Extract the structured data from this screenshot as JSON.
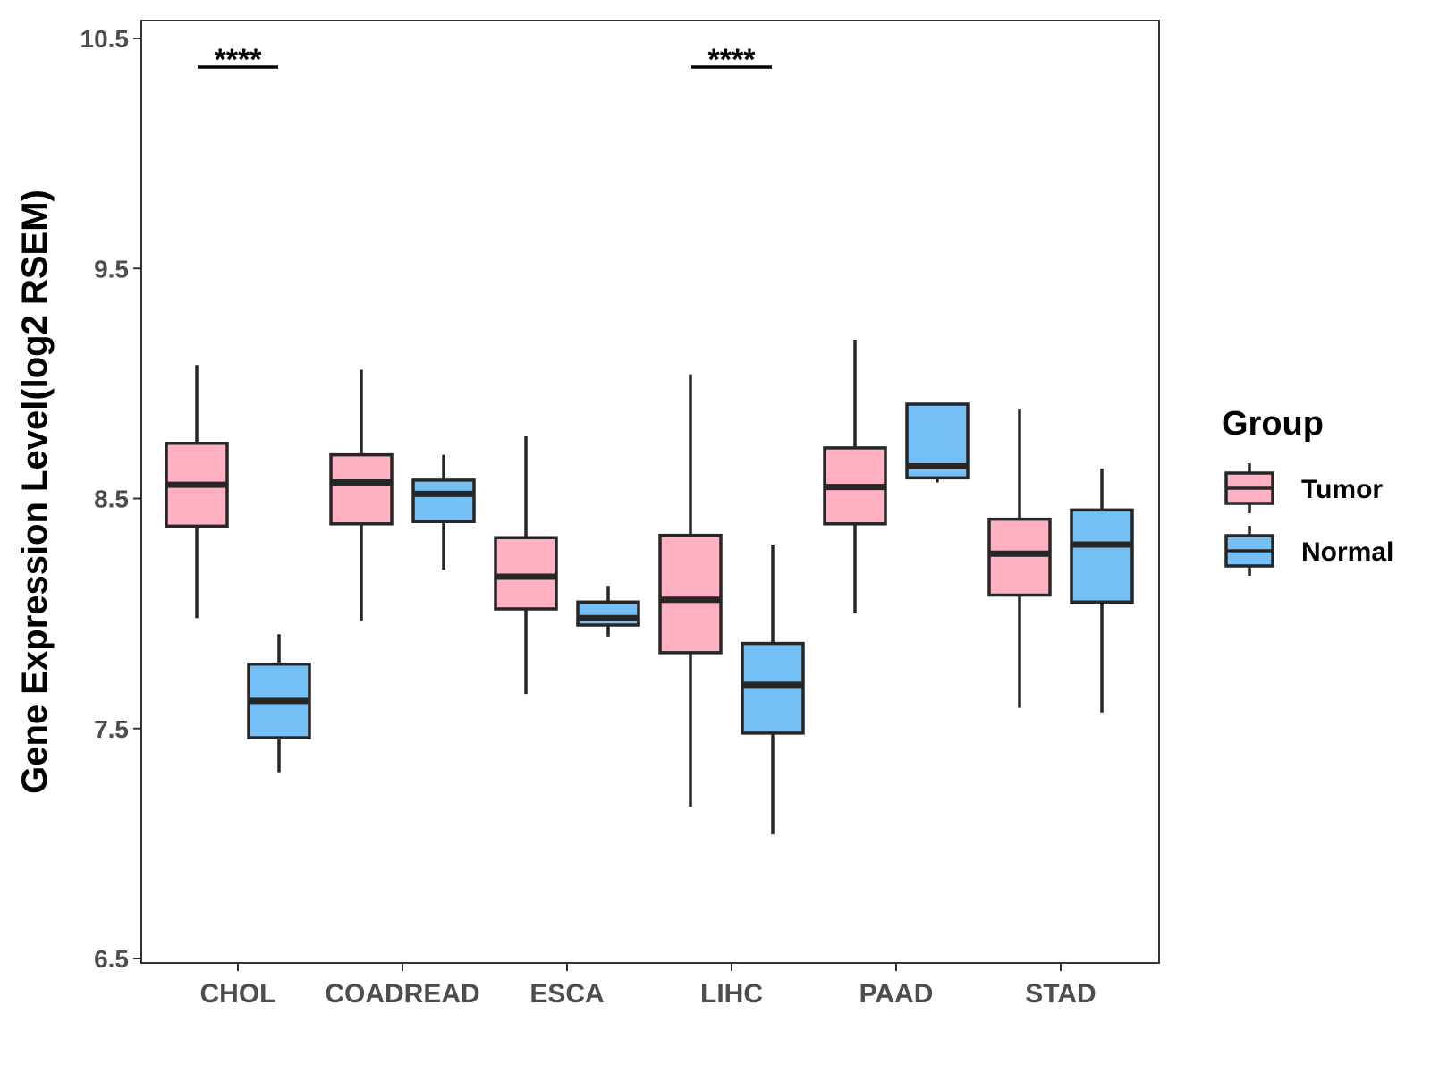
{
  "chart_data": {
    "type": "boxplot",
    "title": "",
    "xlabel": "",
    "ylabel": "Gene Expression Level(log2 RSEM)",
    "ylim": [
      6.5,
      10.5
    ],
    "yticks": [
      6.5,
      7.5,
      8.5,
      9.5,
      10.5
    ],
    "ytick_labels": [
      "6.5",
      "7.5",
      "8.5",
      "9.5",
      "10.5"
    ],
    "categories": [
      "CHOL",
      "COADREAD",
      "ESCA",
      "LIHC",
      "PAAD",
      "STAD"
    ],
    "legend": {
      "title": "Group",
      "position": "right",
      "entries": [
        {
          "name": "Tumor",
          "color": "#FFB0C1"
        },
        {
          "name": "Normal",
          "color": "#74BFF5"
        }
      ]
    },
    "series": [
      {
        "name": "Tumor",
        "color": "#FFB0C1",
        "boxes": [
          {
            "category": "CHOL",
            "min": 7.98,
            "q1": 8.38,
            "median": 8.56,
            "q3": 8.74,
            "max": 9.08
          },
          {
            "category": "COADREAD",
            "min": 7.97,
            "q1": 8.39,
            "median": 8.57,
            "q3": 8.69,
            "max": 9.06
          },
          {
            "category": "ESCA",
            "min": 7.65,
            "q1": 8.02,
            "median": 8.16,
            "q3": 8.33,
            "max": 8.77
          },
          {
            "category": "LIHC",
            "min": 7.16,
            "q1": 7.83,
            "median": 8.06,
            "q3": 8.34,
            "max": 9.04
          },
          {
            "category": "PAAD",
            "min": 8.0,
            "q1": 8.39,
            "median": 8.55,
            "q3": 8.72,
            "max": 9.19
          },
          {
            "category": "STAD",
            "min": 7.59,
            "q1": 8.08,
            "median": 8.26,
            "q3": 8.41,
            "max": 8.89
          }
        ]
      },
      {
        "name": "Normal",
        "color": "#74BFF5",
        "boxes": [
          {
            "category": "CHOL",
            "min": 7.31,
            "q1": 7.46,
            "median": 7.62,
            "q3": 7.78,
            "max": 7.91
          },
          {
            "category": "COADREAD",
            "min": 8.19,
            "q1": 8.4,
            "median": 8.52,
            "q3": 8.58,
            "max": 8.69
          },
          {
            "category": "ESCA",
            "min": 7.9,
            "q1": 7.95,
            "median": 7.98,
            "q3": 8.05,
            "max": 8.12
          },
          {
            "category": "LIHC",
            "min": 7.04,
            "q1": 7.48,
            "median": 7.69,
            "q3": 7.87,
            "max": 8.3
          },
          {
            "category": "PAAD",
            "min": 8.57,
            "q1": 8.59,
            "median": 8.64,
            "q3": 8.91,
            "max": 8.91
          },
          {
            "category": "STAD",
            "min": 7.57,
            "q1": 8.05,
            "median": 8.3,
            "q3": 8.45,
            "max": 8.63
          }
        ]
      }
    ],
    "annotations": [
      {
        "category": "CHOL",
        "text": "****"
      },
      {
        "category": "LIHC",
        "text": "****"
      }
    ]
  }
}
